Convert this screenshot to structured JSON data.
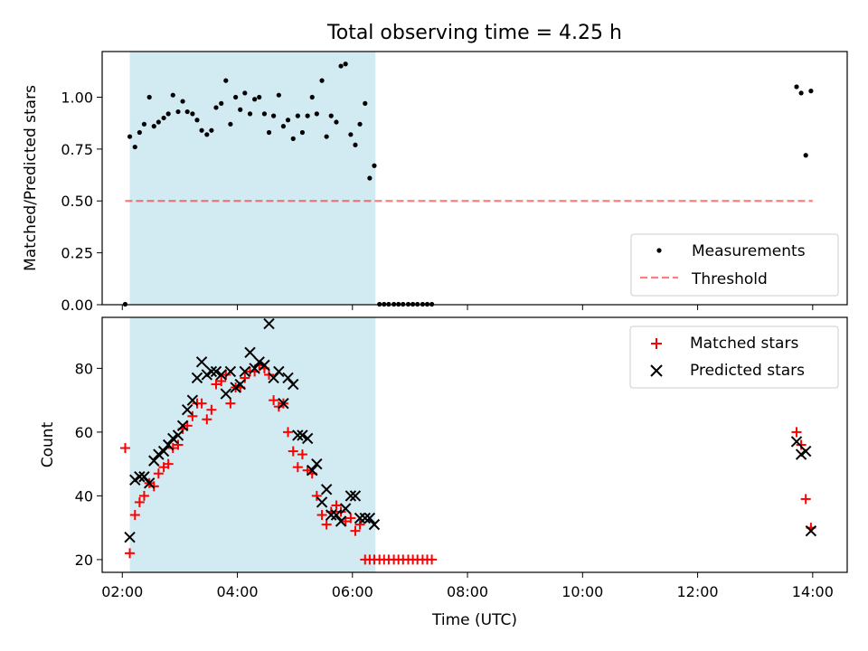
{
  "figure": {
    "title": "Total observing time = 4.25 h"
  },
  "colors": {
    "shade": "#add8e6",
    "measurements": "#000000",
    "threshold": "#ff0000",
    "matched": "#ff0000",
    "predicted": "#000000"
  },
  "chart_data": [
    {
      "type": "scatter",
      "ylabel": "Matched/Predicted stars",
      "xlabel": "",
      "xlim": [
        1.65,
        14.6
      ],
      "ylim": [
        0,
        1.22
      ],
      "yticks": [
        "0.00",
        "0.25",
        "0.50",
        "0.75",
        "1.00"
      ],
      "ytick_values": [
        0,
        0.25,
        0.5,
        0.75,
        1.0
      ],
      "xtick_values": [
        2,
        4,
        6,
        8,
        10,
        12,
        14
      ],
      "shaded_span": [
        2.13,
        6.4
      ],
      "legend_placement": "lower-right",
      "legend": [
        "Measurements",
        "Threshold"
      ],
      "threshold": {
        "name": "Threshold",
        "value": 0.5,
        "x": [
          2.05,
          14.0
        ],
        "style": "dashed"
      },
      "series": [
        {
          "name": "Measurements",
          "marker": "dot",
          "x": [
            2.05,
            2.13,
            2.22,
            2.3,
            2.38,
            2.47,
            2.55,
            2.63,
            2.72,
            2.8,
            2.88,
            2.97,
            3.05,
            3.13,
            3.22,
            3.3,
            3.38,
            3.47,
            3.55,
            3.63,
            3.72,
            3.8,
            3.88,
            3.97,
            4.05,
            4.13,
            4.22,
            4.3,
            4.38,
            4.47,
            4.55,
            4.63,
            4.72,
            4.8,
            4.88,
            4.97,
            5.05,
            5.13,
            5.22,
            5.3,
            5.38,
            5.47,
            5.55,
            5.63,
            5.72,
            5.8,
            5.88,
            5.97,
            6.05,
            6.13,
            6.22,
            6.3,
            6.38,
            6.47,
            6.55,
            6.63,
            6.72,
            6.8,
            6.88,
            6.97,
            7.05,
            7.13,
            7.22,
            7.3,
            7.38,
            13.72,
            13.8,
            13.88,
            13.97
          ],
          "y": [
            0.0,
            0.81,
            0.76,
            0.83,
            0.87,
            1.0,
            0.86,
            0.88,
            0.9,
            0.92,
            1.01,
            0.93,
            0.98,
            0.93,
            0.92,
            0.89,
            0.84,
            0.82,
            0.84,
            0.95,
            0.97,
            1.08,
            0.87,
            1.0,
            0.94,
            1.02,
            0.92,
            0.99,
            1.0,
            0.92,
            0.83,
            0.91,
            1.01,
            0.86,
            0.89,
            0.8,
            0.91,
            0.83,
            0.91,
            1.0,
            0.92,
            1.08,
            0.81,
            0.91,
            0.88,
            1.15,
            1.16,
            0.82,
            0.77,
            0.87,
            0.97,
            0.61,
            0.67,
            0.0,
            0.0,
            0.0,
            0.0,
            0.0,
            0.0,
            0.0,
            0.0,
            0.0,
            0.0,
            0.0,
            0.0,
            1.05,
            1.02,
            0.72,
            1.03
          ]
        }
      ]
    },
    {
      "type": "scatter",
      "ylabel": "Count",
      "xlabel": "Time (UTC)",
      "xlim": [
        1.65,
        14.6
      ],
      "ylim": [
        16,
        96
      ],
      "yticks": [
        "20",
        "40",
        "60",
        "80"
      ],
      "ytick_values": [
        20,
        40,
        60,
        80
      ],
      "xticks": [
        "02:00",
        "04:00",
        "06:00",
        "08:00",
        "10:00",
        "12:00",
        "14:00"
      ],
      "xtick_values": [
        2,
        4,
        6,
        8,
        10,
        12,
        14
      ],
      "shaded_span": [
        2.13,
        6.4
      ],
      "legend_placement": "upper-right",
      "legend": [
        "Matched stars",
        "Predicted stars"
      ],
      "series": [
        {
          "name": "Matched stars",
          "marker": "plus",
          "x": [
            2.05,
            2.13,
            2.22,
            2.3,
            2.38,
            2.47,
            2.55,
            2.63,
            2.72,
            2.8,
            2.88,
            2.97,
            3.05,
            3.13,
            3.22,
            3.3,
            3.38,
            3.47,
            3.55,
            3.63,
            3.72,
            3.8,
            3.88,
            3.97,
            4.05,
            4.13,
            4.22,
            4.3,
            4.38,
            4.47,
            4.55,
            4.63,
            4.72,
            4.8,
            4.88,
            4.97,
            5.05,
            5.13,
            5.22,
            5.3,
            5.38,
            5.47,
            5.55,
            5.63,
            5.72,
            5.8,
            5.88,
            5.97,
            6.05,
            6.13,
            6.22,
            6.3,
            6.38,
            6.47,
            6.55,
            6.63,
            6.72,
            6.8,
            6.88,
            6.97,
            7.05,
            7.13,
            7.22,
            7.3,
            7.38,
            13.72,
            13.8,
            13.88,
            13.97
          ],
          "y": [
            55,
            22,
            34,
            38,
            40,
            44,
            43,
            47,
            49,
            50,
            55,
            56,
            61,
            62,
            65,
            69,
            69,
            64,
            67,
            75,
            76,
            78,
            69,
            74,
            74,
            77,
            79,
            79,
            81,
            80,
            78,
            70,
            68,
            69,
            60,
            54,
            49,
            53,
            48,
            47,
            40,
            34,
            31,
            35,
            37,
            35,
            32,
            33,
            29,
            31,
            20,
            20,
            20,
            20,
            20,
            20,
            20,
            20,
            20,
            20,
            20,
            20,
            20,
            20,
            20,
            60,
            56,
            39,
            30
          ]
        },
        {
          "name": "Predicted stars",
          "marker": "x",
          "x": [
            2.13,
            2.22,
            2.3,
            2.38,
            2.47,
            2.55,
            2.63,
            2.72,
            2.8,
            2.88,
            2.97,
            3.05,
            3.13,
            3.22,
            3.3,
            3.38,
            3.47,
            3.55,
            3.63,
            3.72,
            3.8,
            3.88,
            3.97,
            4.05,
            4.13,
            4.22,
            4.3,
            4.38,
            4.47,
            4.55,
            4.63,
            4.72,
            4.8,
            4.88,
            4.97,
            5.05,
            5.13,
            5.22,
            5.3,
            5.38,
            5.47,
            5.55,
            5.63,
            5.72,
            5.8,
            5.88,
            5.97,
            6.05,
            6.13,
            6.22,
            6.3,
            6.38,
            13.72,
            13.8,
            13.88,
            13.97
          ],
          "y": [
            27,
            45,
            46,
            46,
            44,
            51,
            53,
            54,
            56,
            58,
            59,
            62,
            67,
            70,
            77,
            82,
            78,
            79,
            79,
            78,
            72,
            79,
            74,
            75,
            79,
            85,
            80,
            82,
            81,
            94,
            77,
            79,
            69,
            77,
            75,
            59,
            59,
            58,
            48,
            50,
            38,
            42,
            34,
            34,
            32,
            36,
            40,
            40,
            33,
            33,
            33,
            31,
            57,
            53,
            54,
            29
          ]
        }
      ]
    }
  ]
}
